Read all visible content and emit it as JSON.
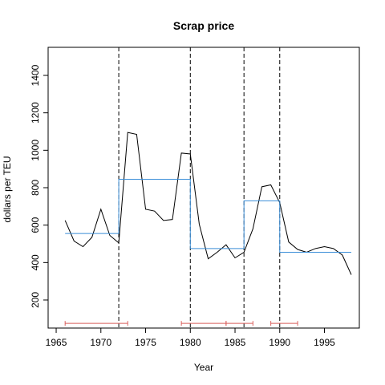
{
  "chart_data": {
    "type": "line",
    "title": "Scrap price",
    "xlabel": "Year",
    "ylabel": "dollars per TEU",
    "xlim": [
      1964.1,
      1998.9
    ],
    "ylim": [
      50,
      1550
    ],
    "x_ticks": [
      1965,
      1970,
      1975,
      1980,
      1985,
      1990,
      1995
    ],
    "y_ticks": [
      200,
      400,
      600,
      800,
      1000,
      1200,
      1400
    ],
    "grid": false,
    "series": [
      {
        "role": "observed",
        "color": "#000000",
        "x": [
          1966,
          1967,
          1968,
          1969,
          1970,
          1971,
          1972,
          1973,
          1974,
          1975,
          1976,
          1977,
          1978,
          1979,
          1980,
          1981,
          1982,
          1983,
          1984,
          1985,
          1986,
          1987,
          1988,
          1989,
          1990,
          1991,
          1992,
          1993,
          1994,
          1995,
          1996,
          1997,
          1998
        ],
        "y": [
          625,
          515,
          485,
          535,
          685,
          545,
          505,
          1095,
          1085,
          685,
          675,
          625,
          630,
          985,
          980,
          605,
          420,
          455,
          495,
          425,
          455,
          580,
          805,
          815,
          720,
          510,
          470,
          455,
          475,
          485,
          475,
          440,
          335
        ]
      },
      {
        "role": "fitted-segments",
        "color": "#3a8ed8",
        "step": true,
        "segments": [
          {
            "x_start": 1966,
            "x_end": 1972,
            "y": 555
          },
          {
            "x_start": 1972,
            "x_end": 1980,
            "y": 845
          },
          {
            "x_start": 1980,
            "x_end": 1986,
            "y": 475
          },
          {
            "x_start": 1986,
            "x_end": 1990,
            "y": 730
          },
          {
            "x_start": 1990,
            "x_end": 1998,
            "y": 455
          }
        ]
      }
    ],
    "breakpoints": [
      1972,
      1980,
      1986,
      1990
    ],
    "breakpoint_style": "dashed",
    "confidence_intervals": {
      "color": "#d9605e",
      "y": 75,
      "intervals": [
        {
          "low": 1966,
          "high": 1973
        },
        {
          "low": 1979,
          "high": 1984
        },
        {
          "low": 1984,
          "high": 1987
        },
        {
          "low": 1989,
          "high": 1992
        }
      ]
    }
  }
}
